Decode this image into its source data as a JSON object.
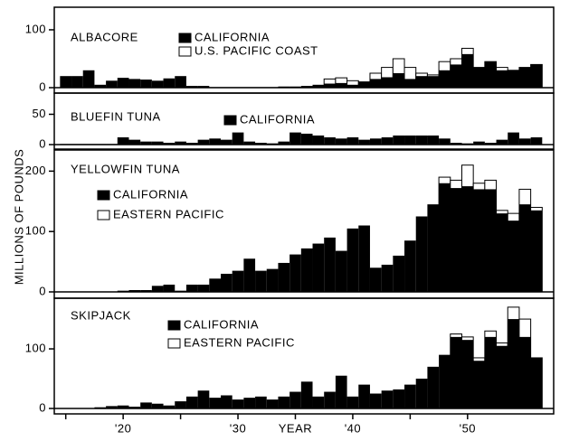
{
  "chart_data": [
    {
      "type": "bar",
      "title": "ALBACORE",
      "x": [
        1915,
        1916,
        1917,
        1918,
        1919,
        1920,
        1921,
        1922,
        1923,
        1924,
        1925,
        1926,
        1927,
        1928,
        1929,
        1930,
        1931,
        1932,
        1933,
        1934,
        1935,
        1936,
        1937,
        1938,
        1939,
        1940,
        1941,
        1942,
        1943,
        1944,
        1945,
        1946,
        1947,
        1948,
        1949,
        1950,
        1951,
        1952,
        1953,
        1954,
        1955,
        1956
      ],
      "series": [
        {
          "name": "CALIFORNIA",
          "color": "#000000",
          "values": [
            20,
            20,
            30,
            5,
            12,
            17,
            15,
            14,
            12,
            16,
            20,
            3,
            3,
            1,
            1,
            1,
            1,
            1,
            1,
            2,
            2,
            3,
            5,
            7,
            8,
            5,
            10,
            15,
            18,
            25,
            15,
            20,
            20,
            30,
            40,
            58,
            35,
            45,
            30,
            30,
            35,
            40
          ]
        },
        {
          "name": "U.S. PACIFIC COAST",
          "color": "#ffffff",
          "values": [
            null,
            null,
            null,
            null,
            null,
            null,
            null,
            null,
            null,
            null,
            null,
            null,
            null,
            null,
            null,
            null,
            null,
            null,
            null,
            null,
            null,
            null,
            null,
            15,
            17,
            12,
            10,
            25,
            35,
            50,
            35,
            25,
            22,
            45,
            50,
            68,
            35,
            45,
            35,
            30,
            35,
            40
          ]
        }
      ],
      "xlim": [
        1914,
        1957.5
      ],
      "ylim": [
        0,
        139
      ],
      "yticks": [
        0,
        100
      ]
    },
    {
      "type": "bar",
      "title": "BLUEFIN TUNA",
      "x": [
        1915,
        1916,
        1917,
        1918,
        1919,
        1920,
        1921,
        1922,
        1923,
        1924,
        1925,
        1926,
        1927,
        1928,
        1929,
        1930,
        1931,
        1932,
        1933,
        1934,
        1935,
        1936,
        1937,
        1938,
        1939,
        1940,
        1941,
        1942,
        1943,
        1944,
        1945,
        1946,
        1947,
        1948,
        1949,
        1950,
        1951,
        1952,
        1953,
        1954,
        1955,
        1956
      ],
      "series": [
        {
          "name": "CALIFORNIA",
          "color": "#000000",
          "values": [
            1,
            1,
            1,
            1,
            1,
            12,
            8,
            5,
            5,
            3,
            5,
            3,
            8,
            10,
            8,
            20,
            5,
            3,
            2,
            5,
            20,
            18,
            15,
            12,
            10,
            12,
            8,
            10,
            12,
            15,
            15,
            15,
            15,
            10,
            3,
            2,
            5,
            3,
            8,
            20,
            10,
            12
          ]
        }
      ],
      "xlim": [
        1914,
        1957.5
      ],
      "ylim": [
        0,
        85
      ],
      "yticks": [
        0,
        50
      ]
    },
    {
      "type": "bar",
      "title": "YELLOWFIN TUNA",
      "x": [
        1915,
        1916,
        1917,
        1918,
        1919,
        1920,
        1921,
        1922,
        1923,
        1924,
        1925,
        1926,
        1927,
        1928,
        1929,
        1930,
        1931,
        1932,
        1933,
        1934,
        1935,
        1936,
        1937,
        1938,
        1939,
        1940,
        1941,
        1942,
        1943,
        1944,
        1945,
        1946,
        1947,
        1948,
        1949,
        1950,
        1951,
        1952,
        1953,
        1954,
        1955,
        1956
      ],
      "series": [
        {
          "name": "CALIFORNIA",
          "color": "#000000",
          "values": [
            0,
            0,
            0,
            0,
            0,
            2,
            3,
            3,
            10,
            12,
            2,
            12,
            12,
            22,
            30,
            35,
            55,
            35,
            38,
            48,
            62,
            72,
            80,
            90,
            68,
            105,
            110,
            40,
            45,
            60,
            85,
            125,
            145,
            180,
            172,
            175,
            170,
            170,
            130,
            118,
            145,
            135
          ]
        },
        {
          "name": "EASTERN PACIFIC",
          "color": "#ffffff",
          "values": [
            null,
            null,
            null,
            null,
            null,
            null,
            null,
            null,
            null,
            null,
            null,
            null,
            null,
            null,
            null,
            null,
            null,
            null,
            null,
            null,
            null,
            null,
            null,
            null,
            null,
            null,
            null,
            null,
            null,
            null,
            null,
            null,
            null,
            190,
            185,
            210,
            180,
            185,
            135,
            130,
            170,
            140
          ]
        }
      ],
      "xlim": [
        1914,
        1957.5
      ],
      "ylim": [
        0,
        235
      ],
      "yticks": [
        0,
        100,
        200
      ],
      "ylabel": "MILLIONS OF POUNDS"
    },
    {
      "type": "bar",
      "title": "SKIPJACK",
      "x": [
        1915,
        1916,
        1917,
        1918,
        1919,
        1920,
        1921,
        1922,
        1923,
        1924,
        1925,
        1926,
        1927,
        1928,
        1929,
        1930,
        1931,
        1932,
        1933,
        1934,
        1935,
        1936,
        1937,
        1938,
        1939,
        1940,
        1941,
        1942,
        1943,
        1944,
        1945,
        1946,
        1947,
        1948,
        1949,
        1950,
        1951,
        1952,
        1953,
        1954,
        1955,
        1956
      ],
      "series": [
        {
          "name": "CALIFORNIA",
          "color": "#000000",
          "values": [
            0,
            0,
            0,
            2,
            4,
            5,
            3,
            10,
            8,
            5,
            12,
            20,
            30,
            18,
            22,
            15,
            18,
            20,
            15,
            20,
            28,
            45,
            20,
            28,
            55,
            20,
            40,
            25,
            30,
            32,
            40,
            50,
            70,
            90,
            120,
            115,
            80,
            120,
            105,
            150,
            120,
            85
          ]
        },
        {
          "name": "EASTERN PACIFIC",
          "color": "#ffffff",
          "values": [
            null,
            null,
            null,
            null,
            null,
            null,
            null,
            null,
            null,
            null,
            null,
            null,
            null,
            null,
            null,
            null,
            null,
            null,
            null,
            null,
            null,
            null,
            null,
            null,
            null,
            null,
            null,
            null,
            null,
            null,
            null,
            null,
            null,
            null,
            125,
            120,
            85,
            130,
            110,
            170,
            150,
            85
          ]
        }
      ],
      "xlim": [
        1914,
        1957.5
      ],
      "ylim": [
        0,
        185
      ],
      "yticks": [
        0,
        100
      ],
      "xticks": [
        {
          "value": 1920,
          "label": "'20"
        },
        {
          "value": 1930,
          "label": "'30"
        },
        {
          "value": 1940,
          "label": "'40"
        },
        {
          "value": 1950,
          "label": "'50"
        }
      ],
      "xminor": [
        1915,
        1925,
        1935,
        1945
      ],
      "xlabel": "YEAR"
    }
  ]
}
